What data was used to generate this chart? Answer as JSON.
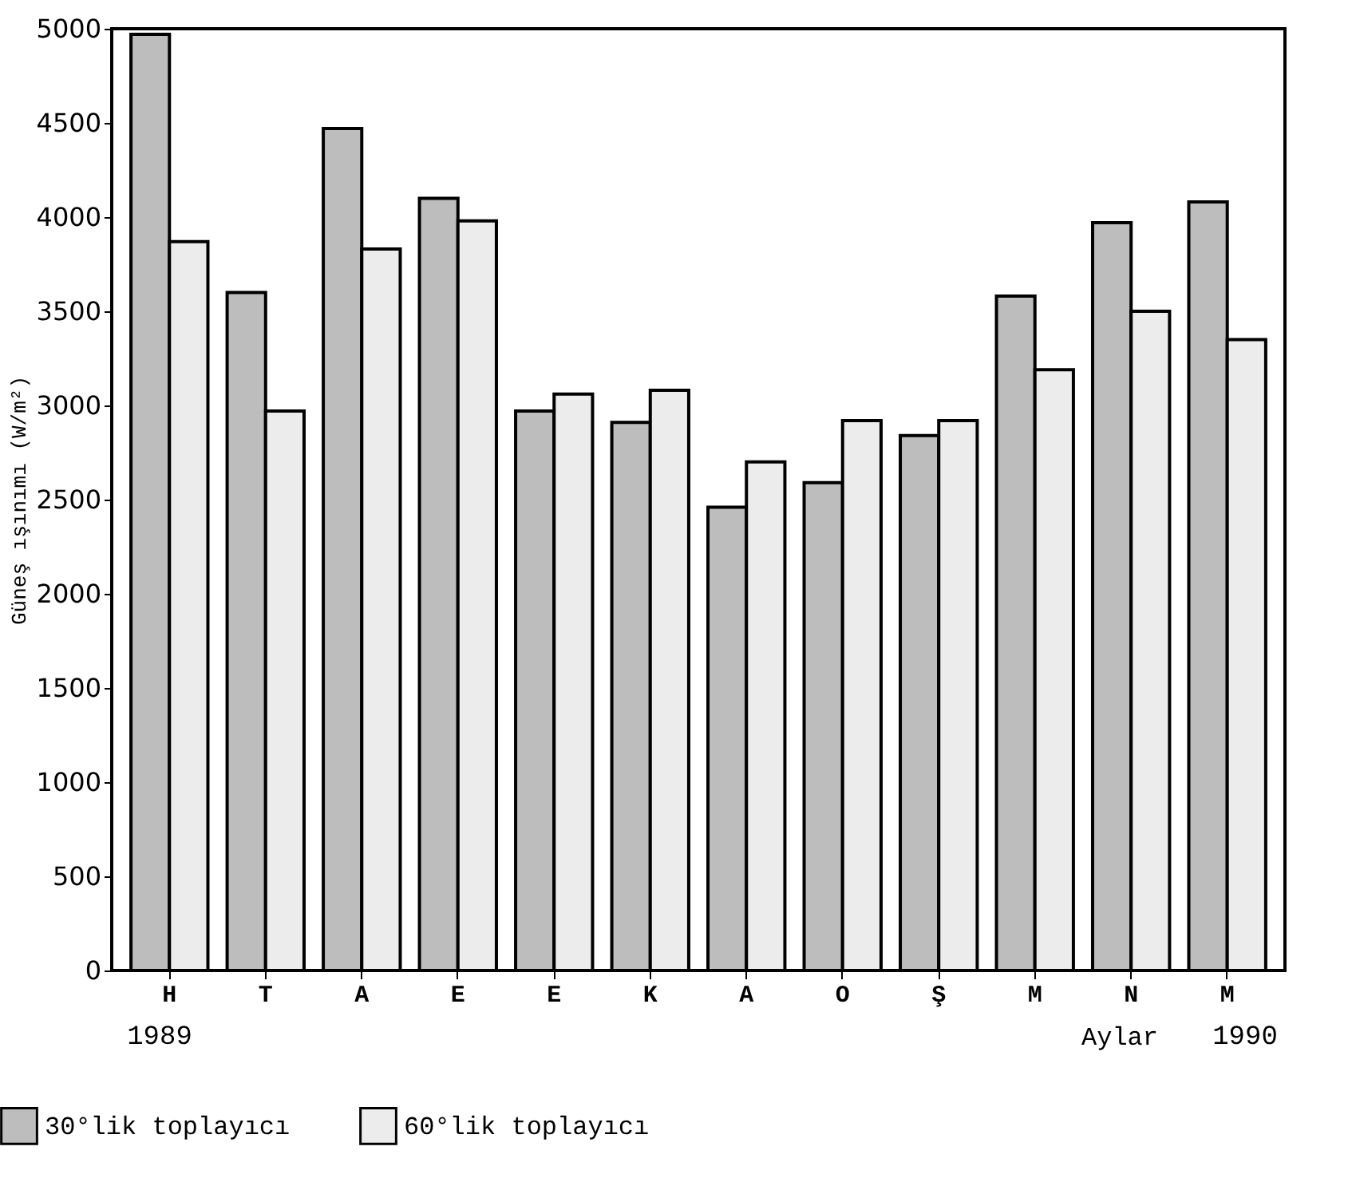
{
  "chart_data": {
    "type": "bar",
    "ylabel": "Güneş ışınımı (W/m²)",
    "xlabel": "Aylar",
    "categories": [
      "H",
      "T",
      "A",
      "E",
      "E",
      "K",
      "A",
      "O",
      "Ş",
      "M",
      "N",
      "M"
    ],
    "series": [
      {
        "name": "30°lik toplayıcı",
        "color": "#bdbdbd",
        "values": [
          4970,
          3600,
          4470,
          4100,
          2970,
          2910,
          2460,
          2590,
          2840,
          3580,
          3970,
          4080
        ]
      },
      {
        "name": "60°lik toplayıcı",
        "color": "#ececec",
        "values": [
          3870,
          2970,
          3830,
          3980,
          3060,
          3080,
          2700,
          2920,
          2920,
          3190,
          3500,
          3350
        ]
      }
    ],
    "ylim": [
      0,
      5000
    ],
    "yticks": [
      0,
      500,
      1000,
      1500,
      2000,
      2500,
      3000,
      3500,
      4000,
      4500,
      5000
    ],
    "annotations": [
      "1989",
      "1990"
    ],
    "grid": false,
    "legend": "bottom"
  }
}
